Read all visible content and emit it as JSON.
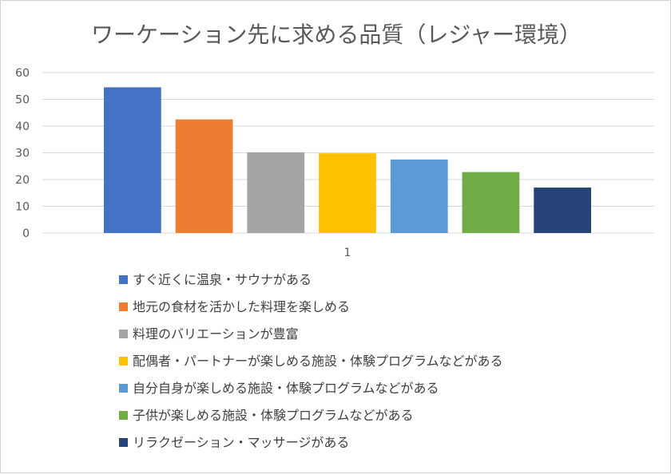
{
  "chart_data": {
    "type": "bar",
    "title": "ワーケーション先に求める品質（レジャー環境）",
    "xlabel": "",
    "ylabel": "",
    "ylim": [
      0,
      60
    ],
    "yticks": [
      0,
      10,
      20,
      30,
      40,
      50,
      60
    ],
    "categories": [
      "1"
    ],
    "grid": true,
    "legend_position": "bottom",
    "series": [
      {
        "name": "すぐ近くに温泉・サウナがある",
        "values": [
          54.5
        ],
        "color": "#4472C4"
      },
      {
        "name": "地元の食材を活かした料理を楽しめる",
        "values": [
          42.5
        ],
        "color": "#ED7D31"
      },
      {
        "name": "料理のバリエーションが豊富",
        "values": [
          30.2
        ],
        "color": "#A5A5A5"
      },
      {
        "name": "配偶者・パートナーが楽しめる施設・体験プログラムなどがある",
        "values": [
          29.8
        ],
        "color": "#FFC000"
      },
      {
        "name": "自分自身が楽しめる施設・体験プログラムなどがある",
        "values": [
          27.5
        ],
        "color": "#5B9BD5"
      },
      {
        "name": "子供が楽しめる施設・体験プログラムなどがある",
        "values": [
          22.8
        ],
        "color": "#70AD47"
      },
      {
        "name": "リラクゼーション・マッサージがある",
        "values": [
          17.0
        ],
        "color": "#264478"
      }
    ]
  }
}
